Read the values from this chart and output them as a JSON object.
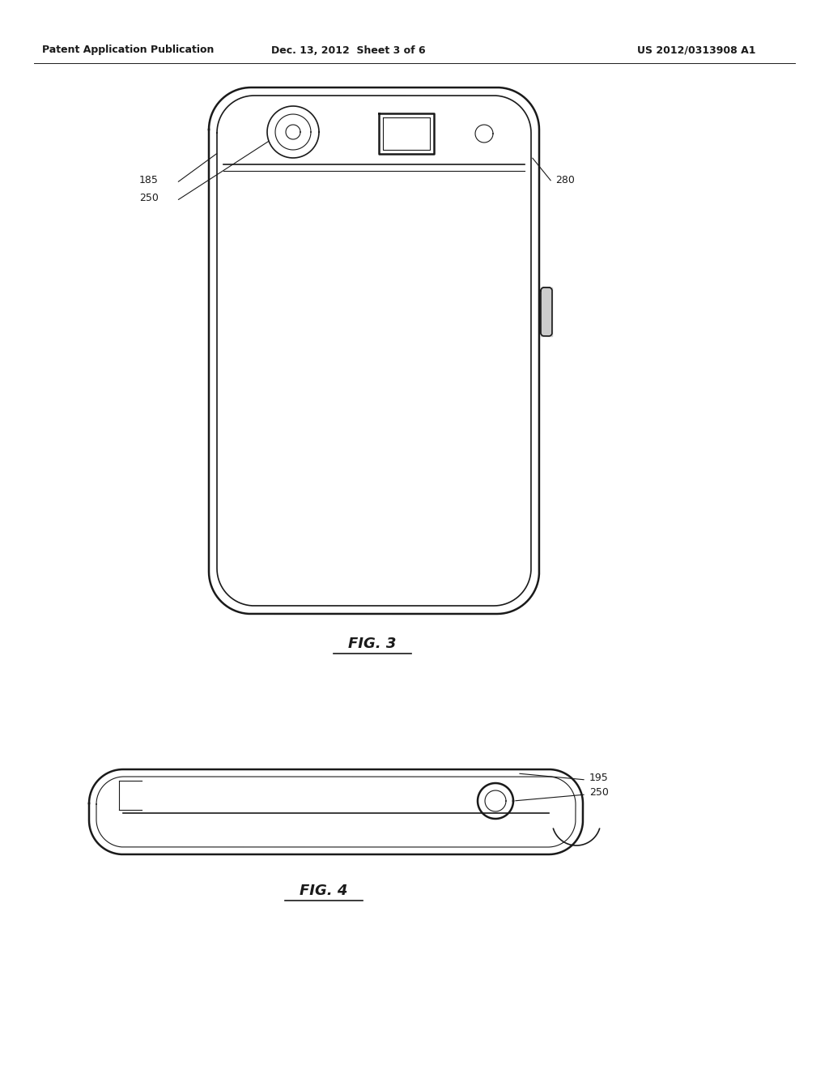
{
  "bg_color": "#ffffff",
  "line_color": "#1a1a1a",
  "header_left": "Patent Application Publication",
  "header_mid": "Dec. 13, 2012  Sheet 3 of 6",
  "header_right": "US 2012/0313908 A1",
  "fig3_label": "FIG. 3",
  "fig4_label": "FIG. 4"
}
